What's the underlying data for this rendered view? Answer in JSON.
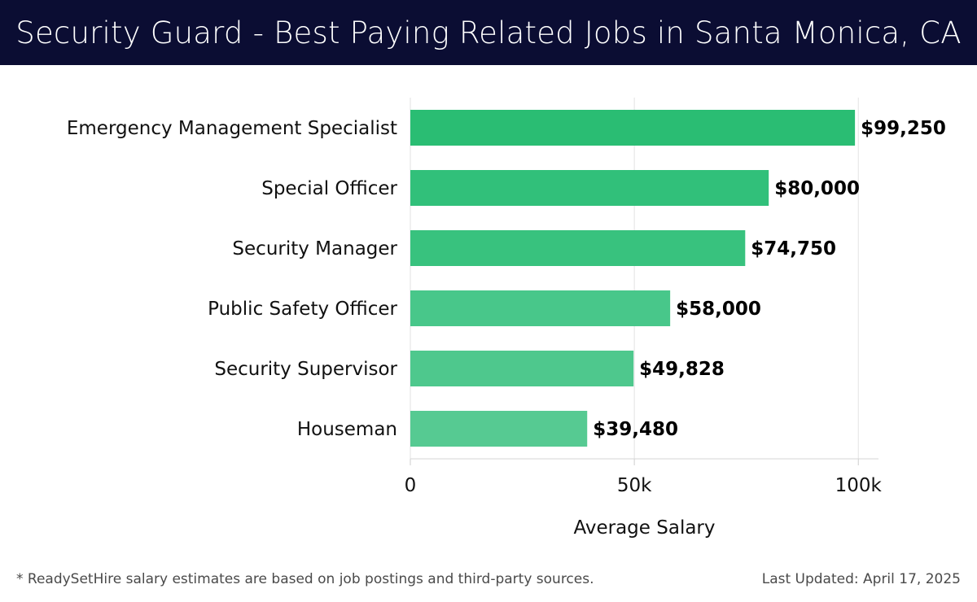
{
  "header": {
    "title": "Security Guard - Best Paying Related Jobs in Santa Monica, CA",
    "background": "#0b0d33"
  },
  "chart_data": {
    "type": "bar",
    "orientation": "horizontal",
    "categories": [
      "Emergency Management Specialist",
      "Special Officer",
      "Security Manager",
      "Public Safety Officer",
      "Security Supervisor",
      "Houseman"
    ],
    "values": [
      99250,
      80000,
      74750,
      58000,
      49828,
      39480
    ],
    "value_labels": [
      "$99,250",
      "$80,000",
      "$74,750",
      "$58,000",
      "$49,828",
      "$39,480"
    ],
    "bar_colors": [
      "#2abd73",
      "#31c07a",
      "#38c27e",
      "#48c78a",
      "#4ec88d",
      "#56ca92"
    ],
    "xlabel": "Average Salary",
    "xlim": [
      0,
      104500
    ],
    "xticks": [
      0,
      50000,
      100000
    ],
    "xtick_labels": [
      "0",
      "50k",
      "100k"
    ],
    "grid": true
  },
  "footer": {
    "note": "* ReadySetHire salary estimates are based on job postings and third-party sources.",
    "updated": "Last Updated: April 17, 2025"
  }
}
